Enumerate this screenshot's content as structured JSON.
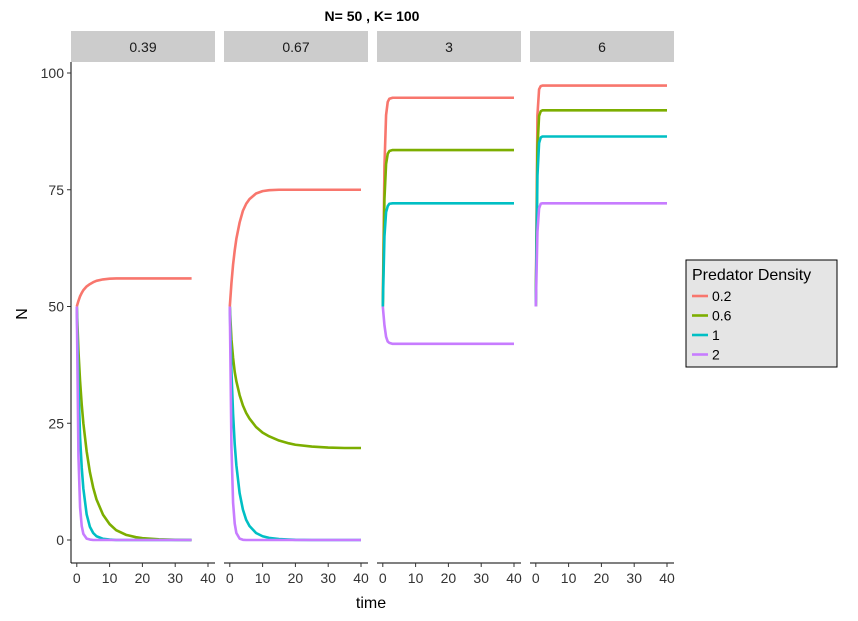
{
  "chart_data": {
    "type": "line",
    "title": "N= 50 , K= 100",
    "xlabel": "time",
    "ylabel": "N",
    "xlim": [
      0,
      40
    ],
    "ylim": [
      0,
      100
    ],
    "x_ticks": [
      0,
      10,
      20,
      30,
      40
    ],
    "y_ticks": [
      0,
      25,
      50,
      75,
      100
    ],
    "grid": false,
    "legend": {
      "title": "Predator Density",
      "position": "right",
      "entries": [
        {
          "label": "0.2",
          "color": "#F8766D"
        },
        {
          "label": "0.6",
          "color": "#7CAE00"
        },
        {
          "label": "1",
          "color": "#00BFC4"
        },
        {
          "label": "2",
          "color": "#C77CFF"
        }
      ]
    },
    "x": [
      0,
      0.5,
      1,
      1.5,
      2,
      3,
      4,
      5,
      6,
      8,
      10,
      12,
      15,
      18,
      20,
      25,
      30,
      35,
      40
    ],
    "facets": [
      {
        "label": "0.39",
        "x_end": 35,
        "series": [
          {
            "name": "0.2",
            "color": "#F8766D",
            "values": [
              50,
              51.2,
              52.2,
              52.9,
              53.5,
              54.3,
              54.8,
              55.2,
              55.5,
              55.8,
              55.95,
              56,
              56,
              56,
              56,
              56,
              56,
              56,
              56
            ]
          },
          {
            "name": "0.6",
            "color": "#7CAE00",
            "values": [
              50,
              40.5,
              34,
              29,
              25,
              19,
              14.5,
              11.2,
              8.7,
              5.4,
              3.4,
              2.1,
              1.1,
              0.6,
              0.4,
              0.15,
              0.05,
              0,
              0
            ]
          },
          {
            "name": "1",
            "color": "#00BFC4",
            "values": [
              50,
              33,
              22,
              15.5,
              11,
              5.5,
              2.8,
              1.5,
              0.8,
              0.25,
              0.1,
              0,
              0,
              0,
              0,
              0,
              0,
              0,
              0
            ]
          },
          {
            "name": "2",
            "color": "#C77CFF",
            "values": [
              50,
              18,
              7,
              3,
              1.3,
              0.3,
              0.1,
              0,
              0,
              0,
              0,
              0,
              0,
              0,
              0,
              0,
              0,
              0,
              0
            ]
          }
        ]
      },
      {
        "label": "0.67",
        "x_end": 40,
        "series": [
          {
            "name": "0.2",
            "color": "#F8766D",
            "values": [
              50,
              55,
              59,
              62,
              64.5,
              68,
              70.5,
              72,
              73,
              74.2,
              74.7,
              74.9,
              75,
              75,
              75,
              75,
              75,
              75,
              75
            ]
          },
          {
            "name": "0.6",
            "color": "#7CAE00",
            "values": [
              50,
              43,
              39,
              36,
              34,
              31,
              28.8,
              27.2,
              26,
              24.2,
              23,
              22.2,
              21.3,
              20.7,
              20.4,
              20,
              19.8,
              19.7,
              19.7
            ]
          },
          {
            "name": "1",
            "color": "#00BFC4",
            "values": [
              50,
              36,
              27,
              20.5,
              16,
              10,
              6.5,
              4.3,
              3,
              1.5,
              0.8,
              0.45,
              0.2,
              0.1,
              0.05,
              0,
              0,
              0,
              0
            ]
          },
          {
            "name": "2",
            "color": "#C77CFF",
            "values": [
              50,
              20,
              8,
              3.5,
              1.5,
              0.3,
              0.05,
              0,
              0,
              0,
              0,
              0,
              0,
              0,
              0,
              0,
              0,
              0,
              0
            ]
          }
        ]
      },
      {
        "label": "3",
        "x_end": 40,
        "series": [
          {
            "name": "0.2",
            "color": "#F8766D",
            "values": [
              50,
              80,
              91,
              93.8,
              94.5,
              94.7,
              94.7,
              94.7,
              94.7,
              94.7,
              94.7,
              94.7,
              94.7,
              94.7,
              94.7,
              94.7,
              94.7,
              94.7,
              94.7
            ]
          },
          {
            "name": "0.6",
            "color": "#7CAE00",
            "values": [
              50,
              73,
              80.5,
              82.7,
              83.3,
              83.5,
              83.5,
              83.5,
              83.5,
              83.5,
              83.5,
              83.5,
              83.5,
              83.5,
              83.5,
              83.5,
              83.5,
              83.5,
              83.5
            ]
          },
          {
            "name": "1",
            "color": "#00BFC4",
            "values": [
              50,
              65,
              70.2,
              71.5,
              72,
              72.1,
              72.1,
              72.1,
              72.1,
              72.1,
              72.1,
              72.1,
              72.1,
              72.1,
              72.1,
              72.1,
              72.1,
              72.1,
              72.1
            ]
          },
          {
            "name": "2",
            "color": "#C77CFF",
            "values": [
              50,
              46,
              43.5,
              42.5,
              42.2,
              42,
              42,
              42,
              42,
              42,
              42,
              42,
              42,
              42,
              42,
              42,
              42,
              42,
              42
            ]
          }
        ]
      },
      {
        "label": "6",
        "x_end": 40,
        "series": [
          {
            "name": "0.2",
            "color": "#F8766D",
            "values": [
              50,
              91,
              96.5,
              97.2,
              97.3,
              97.3,
              97.3,
              97.3,
              97.3,
              97.3,
              97.3,
              97.3,
              97.3,
              97.3,
              97.3,
              97.3,
              97.3,
              97.3,
              97.3
            ]
          },
          {
            "name": "0.6",
            "color": "#7CAE00",
            "values": [
              50,
              84,
              90.8,
              91.8,
              92,
              92,
              92,
              92,
              92,
              92,
              92,
              92,
              92,
              92,
              92,
              92,
              92,
              92,
              92
            ]
          },
          {
            "name": "1",
            "color": "#00BFC4",
            "values": [
              50,
              78,
              85,
              86.2,
              86.4,
              86.4,
              86.4,
              86.4,
              86.4,
              86.4,
              86.4,
              86.4,
              86.4,
              86.4,
              86.4,
              86.4,
              86.4,
              86.4,
              86.4
            ]
          },
          {
            "name": "2",
            "color": "#C77CFF",
            "values": [
              50,
              66,
              71,
              72,
              72.1,
              72.1,
              72.1,
              72.1,
              72.1,
              72.1,
              72.1,
              72.1,
              72.1,
              72.1,
              72.1,
              72.1,
              72.1,
              72.1,
              72.1
            ]
          }
        ]
      }
    ]
  }
}
